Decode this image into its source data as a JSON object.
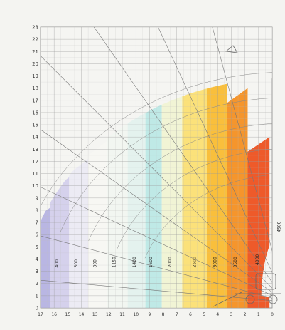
{
  "chart_data": {
    "type": "area",
    "title": "",
    "xlabel": "",
    "ylabel": "",
    "y_ticks": [
      "0",
      "1",
      "2",
      "3",
      "4",
      "5",
      "6",
      "7",
      "8",
      "9",
      "10",
      "11",
      "12",
      "13",
      "14",
      "15",
      "16",
      "17",
      "18",
      "19",
      "20",
      "21",
      "22",
      "23"
    ],
    "x_ticks": [
      "17",
      "16",
      "15",
      "14",
      "13",
      "12",
      "11",
      "10",
      "9",
      "8",
      "7",
      "6",
      "5",
      "4",
      "3",
      "2",
      "1",
      "0"
    ],
    "ylim": [
      0,
      23
    ],
    "xlim": [
      17,
      0
    ],
    "grid": true,
    "zones": [
      {
        "label": "400",
        "color": "#b9b6e3",
        "x": 15.7,
        "y": 3.3,
        "outer_radius_x": [
          17.6,
          16.6
        ]
      },
      {
        "label": "500",
        "color": "#d5d1ec",
        "x": 14.3,
        "y": 3.3
      },
      {
        "label": "800",
        "color": "#ecebf4",
        "x": 12.9,
        "y": 3.3
      },
      {
        "label": "1150",
        "color": "#f7f7f3",
        "x": 11.5,
        "y": 3.3
      },
      {
        "label": "1400",
        "color": "#f2f6f1",
        "x": 10.0,
        "y": 3.3
      },
      {
        "label": "1600",
        "color": "#e4f2ee",
        "x": 8.8,
        "y": 3.3
      },
      {
        "label": "2000",
        "color": "#bfe9e6",
        "x": 7.4,
        "y": 3.3
      },
      {
        "label": "2500",
        "color": "#f1f4d5",
        "x": 5.6,
        "y": 3.3
      },
      {
        "label": "3000",
        "color": "#fbe17a",
        "x": 4.1,
        "y": 3.3
      },
      {
        "label": "3500",
        "color": "#f9bf3c",
        "x": 2.6,
        "y": 3.3
      },
      {
        "label": "4000",
        "color": "#f5952c",
        "x": 1.0,
        "y": 3.5
      },
      {
        "label": "4500",
        "color": "#ee5a2a",
        "x": -0.6,
        "y": 6.2
      }
    ],
    "boom_angles_deg": [
      75,
      65,
      55,
      45,
      35,
      25,
      15,
      5
    ],
    "extension_arcs": 5
  }
}
